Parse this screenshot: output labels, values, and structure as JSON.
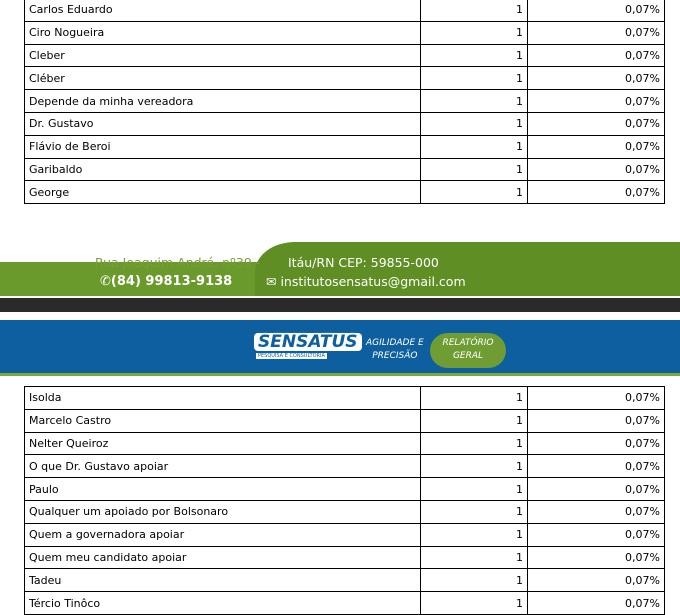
{
  "table_top": [
    {
      "name": "Carlos Eduardo",
      "count": "1",
      "pct": "0,07%"
    },
    {
      "name": "Ciro Nogueira",
      "count": "1",
      "pct": "0,07%"
    },
    {
      "name": "Cleber",
      "count": "1",
      "pct": "0,07%"
    },
    {
      "name": "Cléber",
      "count": "1",
      "pct": "0,07%"
    },
    {
      "name": "Depende da minha vereadora",
      "count": "1",
      "pct": "0,07%"
    },
    {
      "name": "Dr. Gustavo",
      "count": "1",
      "pct": "0,07%"
    },
    {
      "name": "Flávio de Beroi",
      "count": "1",
      "pct": "0,07%"
    },
    {
      "name": "Garibaldo",
      "count": "1",
      "pct": "0,07%"
    },
    {
      "name": "George",
      "count": "1",
      "pct": "0,07%"
    }
  ],
  "footer": {
    "address1": "Rua Joaquim André, nº39 -",
    "address2": "Itáu/RN CEP: 59855-000",
    "phone": "(84) 99813-9138",
    "email": "institutosensatus@gmail.com"
  },
  "header": {
    "logo": "SENSATUS",
    "logo_sub": "PESQUISA E CONSULTORIA",
    "slogan1": "AGILIDADE E",
    "slogan2": "PRECISÃO",
    "badge1": "RELATÓRIO",
    "badge2": "GERAL",
    "colors": {
      "blue": "#0d5fa0",
      "green": "#6a9a2c"
    }
  },
  "table_bottom": [
    {
      "name": "Isolda",
      "count": "1",
      "pct": "0,07%"
    },
    {
      "name": "Marcelo Castro",
      "count": "1",
      "pct": "0,07%"
    },
    {
      "name": "Nelter Queiroz",
      "count": "1",
      "pct": "0,07%"
    },
    {
      "name": "O que Dr. Gustavo apoiar",
      "count": "1",
      "pct": "0,07%"
    },
    {
      "name": "Paulo",
      "count": "1",
      "pct": "0,07%"
    },
    {
      "name": "Qualquer um apoiado por Bolsonaro",
      "count": "1",
      "pct": "0,07%"
    },
    {
      "name": "Quem a governadora apoiar",
      "count": "1",
      "pct": "0,07%"
    },
    {
      "name": "Quem meu candidato apoiar",
      "count": "1",
      "pct": "0,07%"
    },
    {
      "name": "Tadeu",
      "count": "1",
      "pct": "0,07%"
    },
    {
      "name": "Tércio Tinôco",
      "count": "1",
      "pct": "0,07%"
    }
  ]
}
